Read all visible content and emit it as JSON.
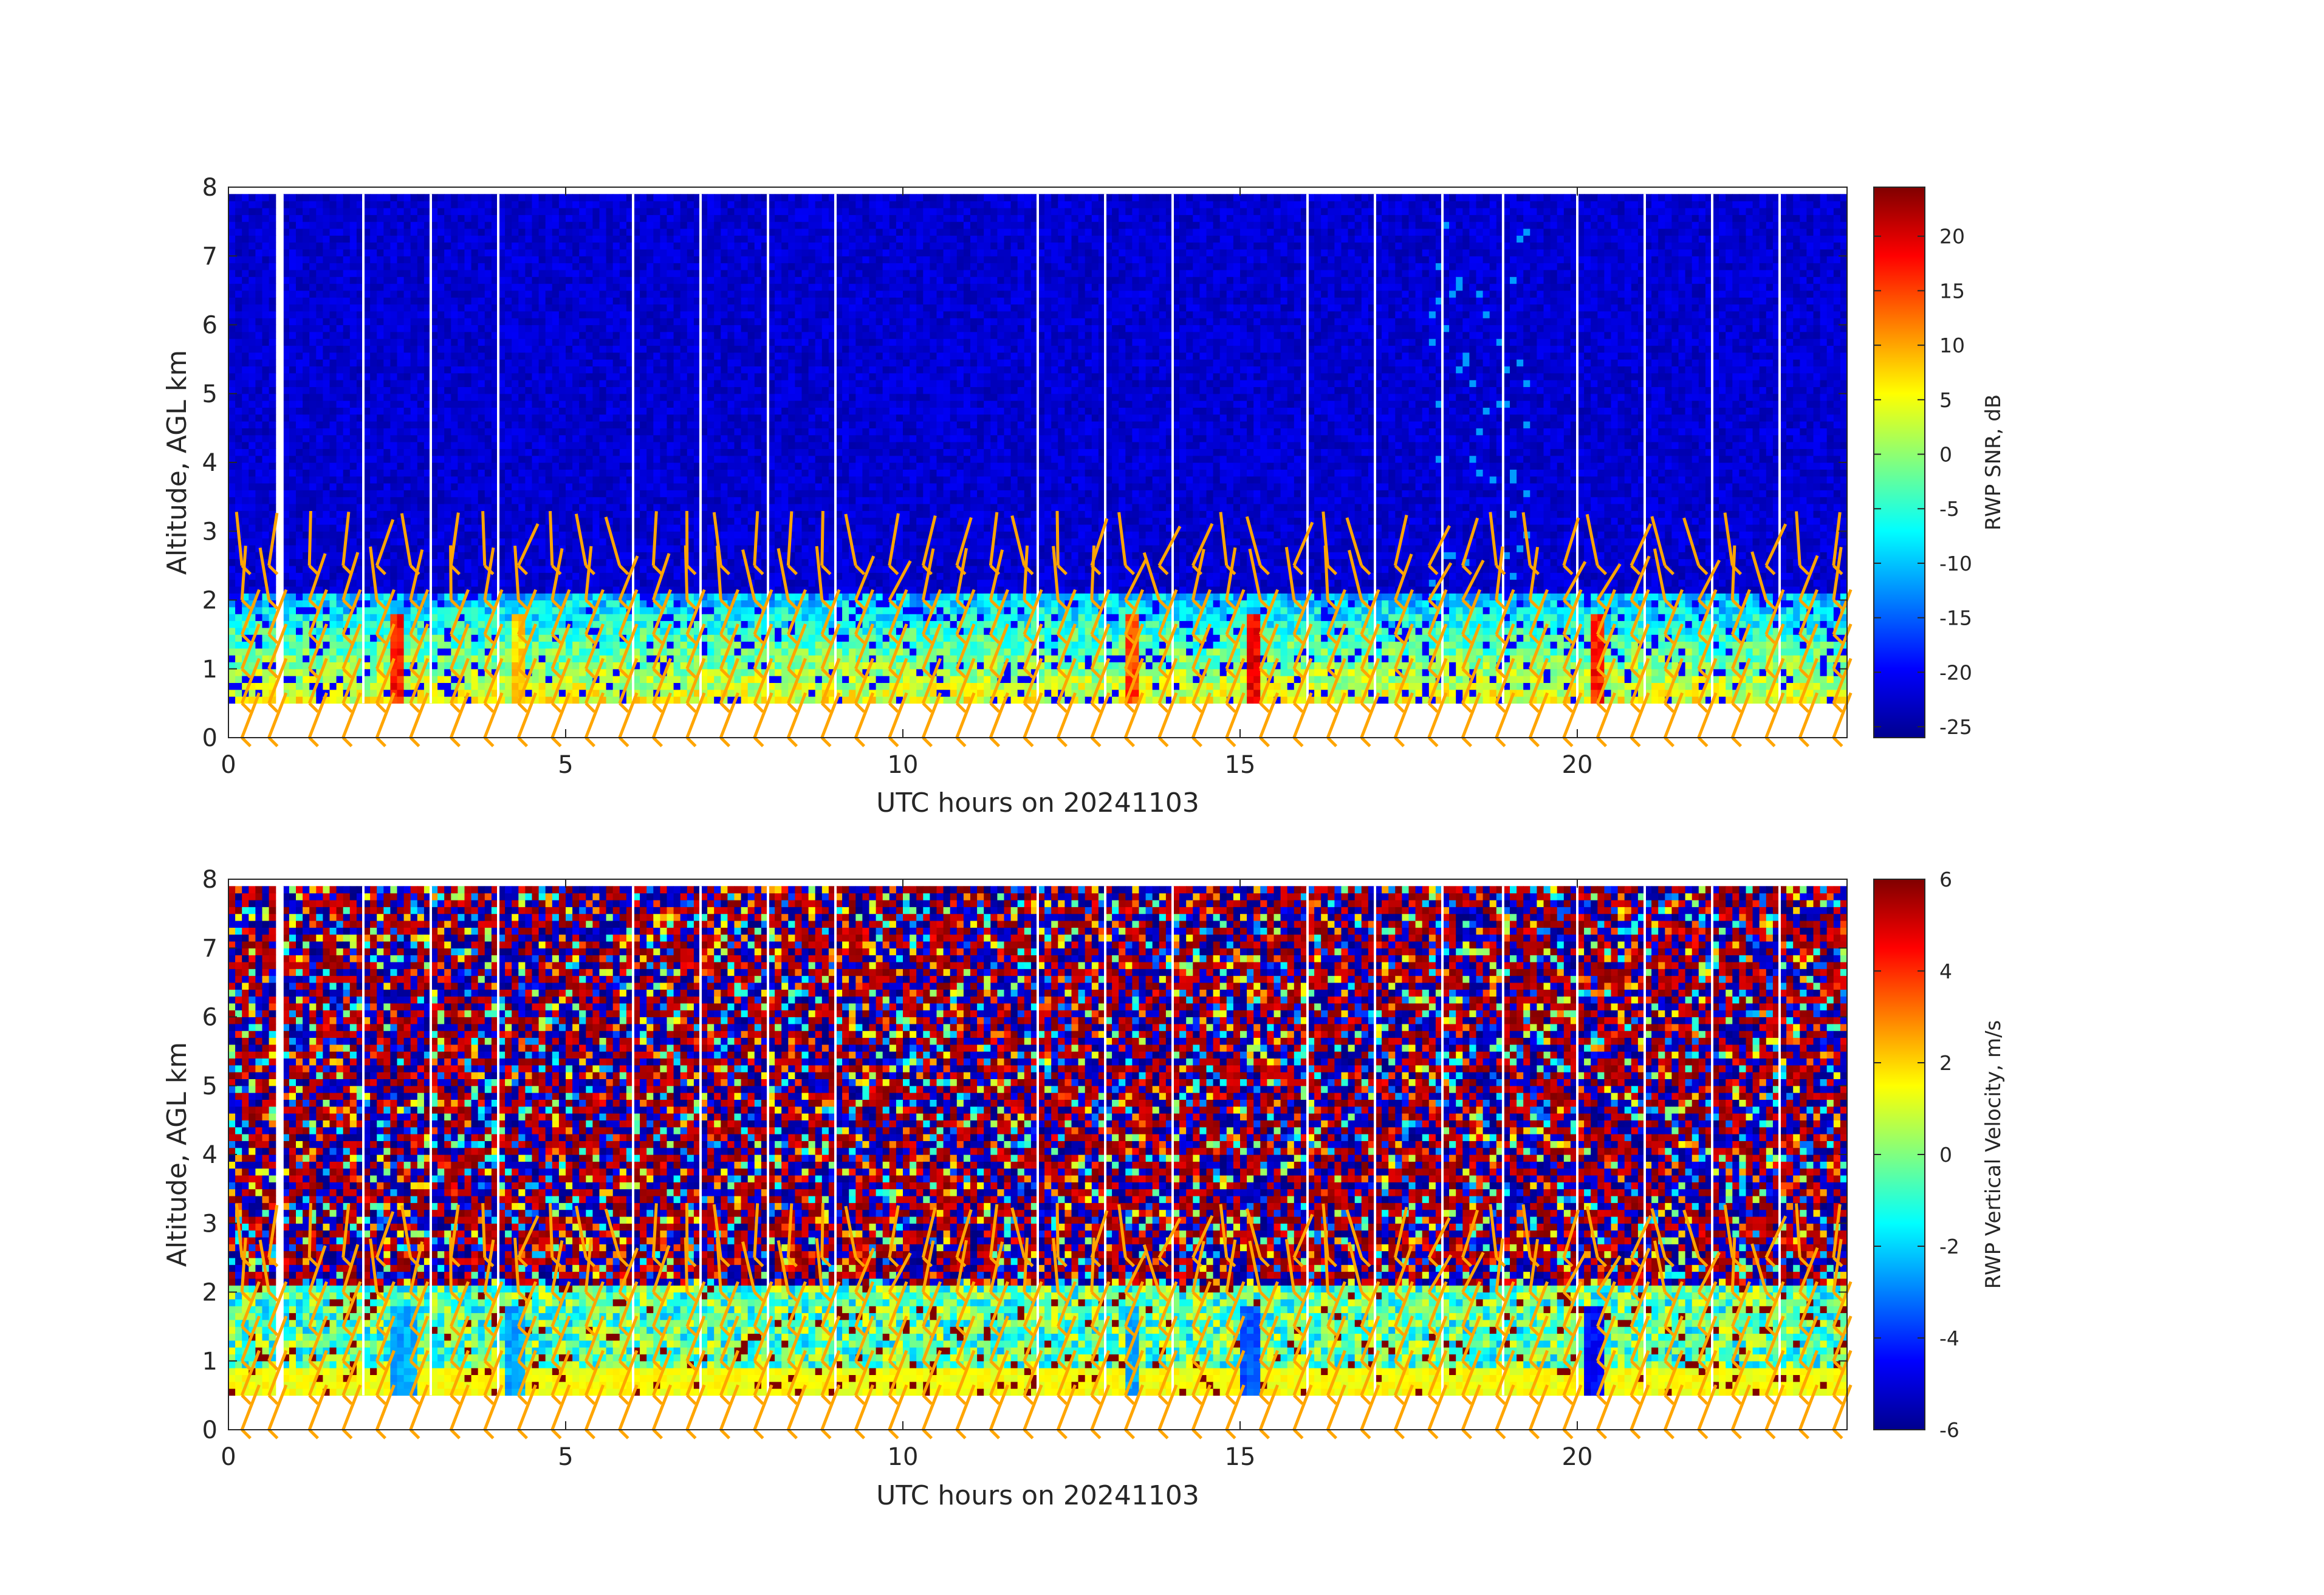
{
  "chart_data": [
    {
      "type": "heatmap",
      "title": "",
      "xlabel": "UTC hours on 20241103",
      "ylabel": "Altitude, AGL km",
      "xlim": [
        0,
        24
      ],
      "ylim": [
        0,
        8
      ],
      "x_ticks": [
        "0",
        "5",
        "10",
        "15",
        "20"
      ],
      "y_ticks": [
        "0",
        "1",
        "2",
        "3",
        "4",
        "5",
        "6",
        "7",
        "8"
      ],
      "colorbar": {
        "label": "RWP SNR, dB",
        "range": [
          -26,
          24.5
        ],
        "ticks": [
          "-25",
          "-20",
          "-15",
          "-10",
          "-5",
          "0",
          "5",
          "10",
          "15",
          "20"
        ],
        "colormap": "jet"
      },
      "field": {
        "variable": "SNR",
        "data_range_km": [
          0.5,
          7.9
        ],
        "background_above_2km_dB": -22,
        "boundary_layer_top_km": 2.05,
        "boundary_layer_dB": [
          -10,
          5
        ],
        "strong_echo_columns": [
          {
            "x": 2.5,
            "dB": 20
          },
          {
            "x": 4.3,
            "dB": 10
          },
          {
            "x": 13.4,
            "dB": 18
          },
          {
            "x": 15.2,
            "dB": 22
          },
          {
            "x": 20.3,
            "dB": 20
          }
        ],
        "data_gap_x": [
          0.7,
          0.8
        ],
        "thin_gap_x": [
          0.8,
          2,
          3,
          4,
          6,
          7,
          8,
          9,
          12,
          13,
          14,
          16,
          17,
          18,
          18.9,
          20,
          21,
          22,
          23
        ]
      },
      "wind_barbs_color": "#FFA500"
    },
    {
      "type": "heatmap",
      "title": "",
      "xlabel": "UTC hours on 20241103",
      "ylabel": "Altitude, AGL km",
      "xlim": [
        0,
        24
      ],
      "ylim": [
        0,
        8
      ],
      "x_ticks": [
        "0",
        "5",
        "10",
        "15",
        "20"
      ],
      "y_ticks": [
        "0",
        "1",
        "2",
        "3",
        "4",
        "5",
        "6",
        "7",
        "8"
      ],
      "colorbar": {
        "label": "RWP Vertical Velocity, m/s",
        "range": [
          -6,
          6
        ],
        "ticks": [
          "-6",
          "-4",
          "-2",
          "0",
          "2",
          "4",
          "6"
        ],
        "colormap": "jet"
      },
      "field": {
        "variable": "vertical_velocity",
        "data_range_km": [
          0.5,
          7.9
        ],
        "noise_above_2km": "alternating -6 to 6 m/s",
        "boundary_layer_top_km": 2.05,
        "boundary_layer_m_s": [
          -2.5,
          1.5
        ],
        "downdraft_columns": [
          {
            "x": 2.6,
            "m_s": -3
          },
          {
            "x": 4.3,
            "m_s": -3
          },
          {
            "x": 13.4,
            "m_s": -3
          },
          {
            "x": 15.2,
            "m_s": -4
          },
          {
            "x": 20.3,
            "m_s": -5
          }
        ],
        "data_gap_x": [
          0.7,
          0.8
        ],
        "thin_gap_x": [
          0.8,
          2,
          3,
          4,
          6,
          7,
          8,
          9,
          12,
          13,
          14,
          16,
          17,
          18,
          18.9,
          20,
          21,
          22,
          23
        ]
      },
      "wind_barbs_color": "#FFA500"
    }
  ],
  "wind_barbs": {
    "color": "#FFA500",
    "times_h": [
      0.2,
      0.6,
      1.2,
      1.7,
      2.2,
      2.7,
      3.3,
      3.8,
      4.3,
      4.8,
      5.3,
      5.8,
      6.3,
      6.8,
      7.3,
      7.8,
      8.3,
      8.8,
      9.3,
      9.8,
      10.3,
      10.8,
      11.3,
      11.8,
      12.3,
      12.8,
      13.3,
      13.8,
      14.3,
      14.8,
      15.3,
      15.8,
      16.3,
      16.8,
      17.3,
      17.8,
      18.3,
      18.8,
      19.3,
      19.8,
      20.3,
      20.8,
      21.3,
      21.8,
      22.3,
      22.8,
      23.3,
      23.8
    ]
  }
}
